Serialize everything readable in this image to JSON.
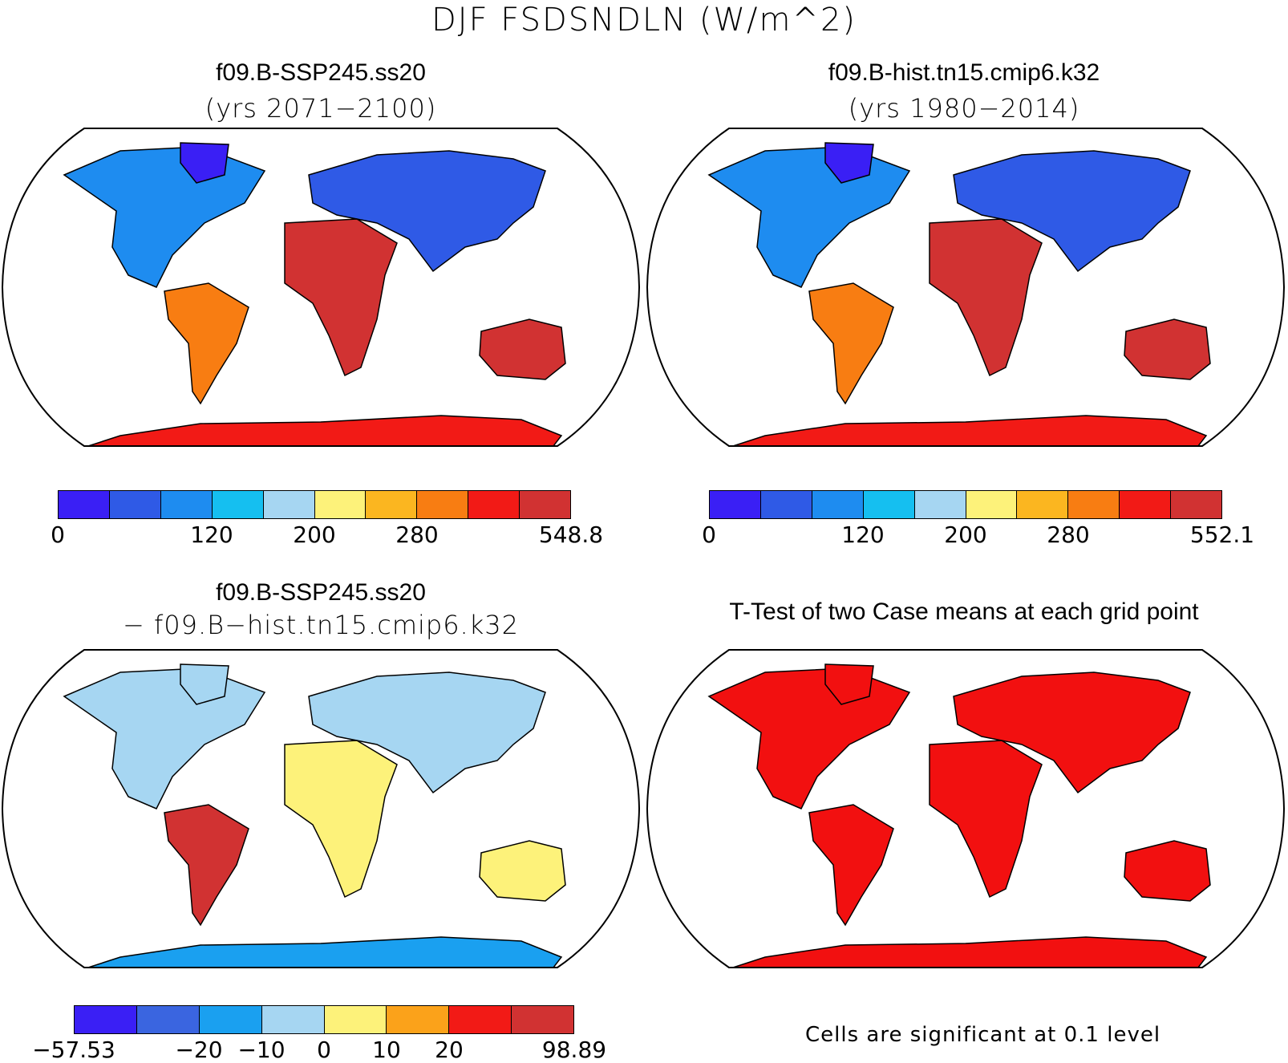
{
  "figure_title": "DJF FSDSNDLN (W/m^2)",
  "panels": [
    {
      "title": "f09.B-SSP245.ss20",
      "subtitle": "(yrs 2071−2100)",
      "colorbar": {
        "min_label": "0",
        "labels": [
          "120",
          "200",
          "280"
        ],
        "max_label": "548.8"
      }
    },
    {
      "title": "f09.B-hist.tn15.cmip6.k32",
      "subtitle": "(yrs 1980−2014)",
      "colorbar": {
        "min_label": "0",
        "labels": [
          "120",
          "200",
          "280"
        ],
        "max_label": "552.1"
      }
    },
    {
      "title": "f09.B-SSP245.ss20",
      "subtitle": "− f09.B−hist.tn15.cmip6.k32",
      "colorbar": {
        "min_label": "−57.53",
        "labels": [
          "−20",
          "−10",
          "0",
          "10",
          "20"
        ],
        "max_label": "98.89"
      }
    },
    {
      "title": "T-Test of two Case means at each grid point",
      "subtitle": "",
      "note": "Cells are significant at 0.1 level"
    }
  ],
  "chart_data": [
    {
      "type": "heatmap",
      "title": "f09.B-SSP245.ss20 (yrs 2071−2100)",
      "variable": "FSDSNDLN",
      "units": "W/m^2",
      "projection": "Robinson",
      "range": [
        0,
        548.8
      ],
      "contour_levels": [
        40,
        80,
        120,
        160,
        200,
        240,
        280,
        320,
        360
      ],
      "colors": [
        "#3a1ff5",
        "#2f5ae6",
        "#1e8cf0",
        "#15bff0",
        "#a6d6f2",
        "#fdf27a",
        "#fbb620",
        "#f87d12",
        "#f21a16",
        "#d13232"
      ]
    },
    {
      "type": "heatmap",
      "title": "f09.B-hist.tn15.cmip6.k32 (yrs 1980−2014)",
      "variable": "FSDSNDLN",
      "units": "W/m^2",
      "projection": "Robinson",
      "range": [
        0,
        552.1
      ],
      "contour_levels": [
        40,
        80,
        120,
        160,
        200,
        240,
        280,
        320,
        360
      ],
      "colors": [
        "#3a1ff5",
        "#2f5ae6",
        "#1e8cf0",
        "#15bff0",
        "#a6d6f2",
        "#fdf27a",
        "#fbb620",
        "#f87d12",
        "#f21a16",
        "#d13232"
      ]
    },
    {
      "type": "heatmap",
      "title": "f09.B-SSP245.ss20 − f09.B−hist.tn15.cmip6.k32",
      "variable": "FSDSNDLN difference",
      "units": "W/m^2",
      "projection": "Robinson",
      "range": [
        -57.53,
        98.89
      ],
      "contour_levels": [
        -30,
        -20,
        -10,
        0,
        10,
        20,
        30
      ],
      "colors": [
        "#3a1ff5",
        "#3a65e0",
        "#1aa0f0",
        "#a6d6f2",
        "#fdf27a",
        "#fba21a",
        "#f21a16",
        "#d13232"
      ]
    },
    {
      "type": "heatmap",
      "title": "T-Test of two Case means at each grid point",
      "projection": "Robinson",
      "significance_level": 0.1,
      "colors": [
        "#f21010"
      ]
    }
  ]
}
